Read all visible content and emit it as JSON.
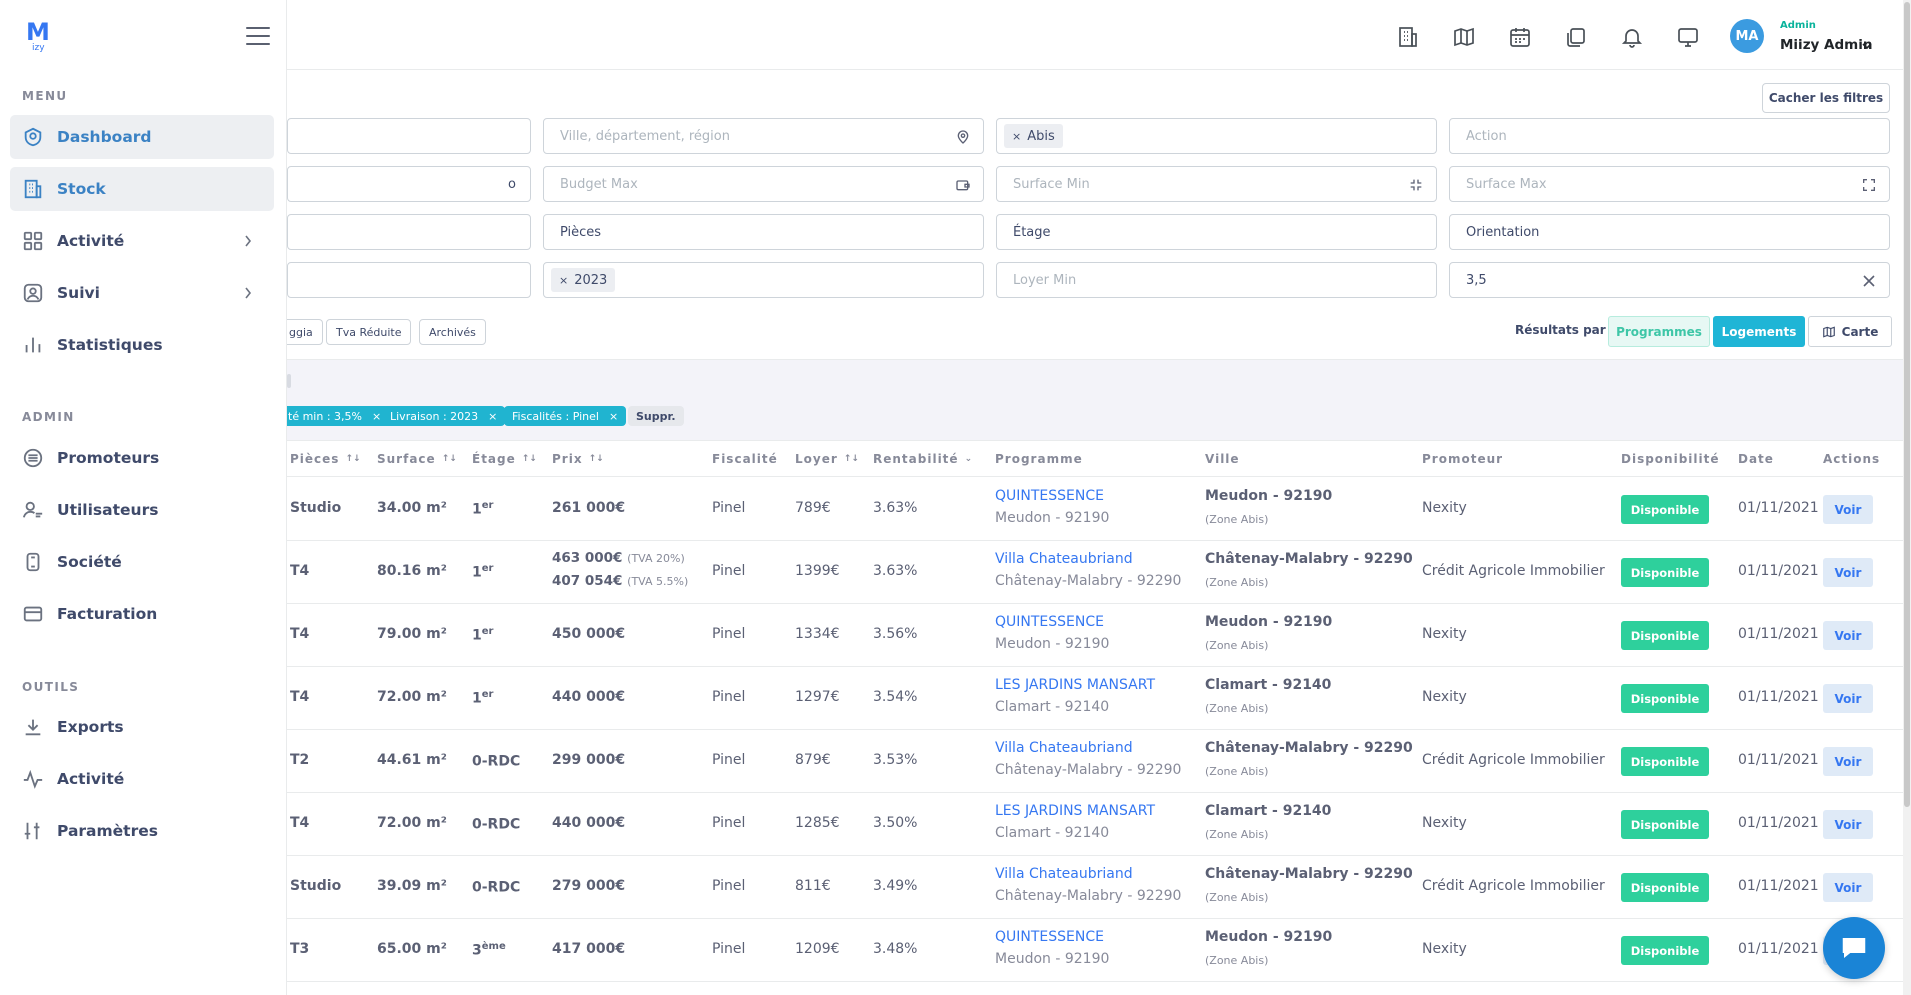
{
  "app": {
    "logo_main": "M",
    "logo_sub": "izy"
  },
  "sidebar": {
    "sections": [
      {
        "title": "MENU",
        "items": [
          {
            "label": "Dashboard",
            "icon": "shield-icon",
            "active": true
          },
          {
            "label": "Stock",
            "icon": "building-icon",
            "active": true
          },
          {
            "label": "Activité",
            "icon": "grid-icon",
            "chevron": true
          },
          {
            "label": "Suivi",
            "icon": "user-circle-icon",
            "chevron": true
          },
          {
            "label": "Statistiques",
            "icon": "bar-chart-icon"
          }
        ]
      },
      {
        "title": "ADMIN",
        "items": [
          {
            "label": "Promoteurs",
            "icon": "list-circle-icon"
          },
          {
            "label": "Utilisateurs",
            "icon": "users-icon"
          },
          {
            "label": "Société",
            "icon": "document-icon"
          },
          {
            "label": "Facturation",
            "icon": "wallet-icon"
          }
        ]
      },
      {
        "title": "OUTILS",
        "items": [
          {
            "label": "Exports",
            "icon": "download-icon"
          },
          {
            "label": "Activité",
            "icon": "activity-icon"
          },
          {
            "label": "Paramètres",
            "icon": "sliders-icon"
          }
        ]
      }
    ]
  },
  "topbar": {
    "icons": [
      "building-icon",
      "map-icon",
      "calendar-icon",
      "files-icon",
      "bell-icon",
      "monitor-icon"
    ],
    "user": {
      "initials": "MA",
      "role": "Admin",
      "name": "Miizy Admin"
    }
  },
  "filters": {
    "hide_label": "Cacher les filtres",
    "location_placeholder": "Ville, département, région",
    "zone_tag": "Abis",
    "action_placeholder": "Action",
    "budget_min_fragment": "o",
    "budget_max_placeholder": "Budget Max",
    "surface_min_placeholder": "Surface Min",
    "surface_max_placeholder": "Surface Max",
    "pieces_placeholder": "Pièces",
    "etage_placeholder": "Étage",
    "orientation_placeholder": "Orientation",
    "livraison_tag": "2023",
    "loyer_min_placeholder": "Loyer Min",
    "rentabilite_value": "3,5",
    "chips": [
      "ggia",
      "Tva Réduite",
      "Archivés"
    ],
    "results_label": "Résultats par",
    "view_programmes": "Programmes",
    "view_logements": "Logements",
    "view_carte": "Carte"
  },
  "active_filters": [
    {
      "label": "té min : 3,5%"
    },
    {
      "label": "Livraison : 2023"
    },
    {
      "label": "Fiscalités : Pinel"
    }
  ],
  "suppr_label": "Suppr.",
  "table": {
    "headers": {
      "pieces": "Pièces",
      "surface": "Surface",
      "etage": "Étage",
      "prix": "Prix",
      "fiscalite": "Fiscalité",
      "loyer": "Loyer",
      "rentabilite": "Rentabilité",
      "programme": "Programme",
      "ville": "Ville",
      "promoteur": "Promoteur",
      "disponibilite": "Disponibilité",
      "date": "Date",
      "actions": "Actions"
    },
    "sort_glyph": "↑↓",
    "desc_glyph": "⌄",
    "rows": [
      {
        "pieces": "Studio",
        "surface": "34.00 m²",
        "etage_base": "1",
        "etage_sup": "er",
        "prix": "261 000€",
        "prix2": "",
        "tva1": "",
        "tva2": "",
        "fiscalite": "Pinel",
        "loyer": "789€",
        "rentabilite": "3.63%",
        "programme": "QUINTESSENCE",
        "programme_city": "Meudon - 92190",
        "ville": "Meudon - 92190",
        "zone": "(Zone Abis)",
        "promoteur": "Nexity",
        "dispo": "Disponible",
        "date": "01/11/2021",
        "action": "Voir"
      },
      {
        "pieces": "T4",
        "surface": "80.16 m²",
        "etage_base": "1",
        "etage_sup": "er",
        "prix": "463 000€",
        "prix2": "407 054€",
        "tva1": "(TVA 20%)",
        "tva2": "(TVA 5.5%)",
        "fiscalite": "Pinel",
        "loyer": "1399€",
        "rentabilite": "3.63%",
        "programme": "Villa Chateaubriand",
        "programme_city": "Châtenay-Malabry - 92290",
        "ville": "Châtenay-Malabry - 92290",
        "zone": "(Zone Abis)",
        "promoteur": "Crédit Agricole Immobilier",
        "dispo": "Disponible",
        "date": "01/11/2021",
        "action": "Voir"
      },
      {
        "pieces": "T4",
        "surface": "79.00 m²",
        "etage_base": "1",
        "etage_sup": "er",
        "prix": "450 000€",
        "prix2": "",
        "tva1": "",
        "tva2": "",
        "fiscalite": "Pinel",
        "loyer": "1334€",
        "rentabilite": "3.56%",
        "programme": "QUINTESSENCE",
        "programme_city": "Meudon - 92190",
        "ville": "Meudon - 92190",
        "zone": "(Zone Abis)",
        "promoteur": "Nexity",
        "dispo": "Disponible",
        "date": "01/11/2021",
        "action": "Voir"
      },
      {
        "pieces": "T4",
        "surface": "72.00 m²",
        "etage_base": "1",
        "etage_sup": "er",
        "prix": "440 000€",
        "prix2": "",
        "tva1": "",
        "tva2": "",
        "fiscalite": "Pinel",
        "loyer": "1297€",
        "rentabilite": "3.54%",
        "programme": "LES JARDINS MANSART",
        "programme_city": "Clamart - 92140",
        "ville": "Clamart - 92140",
        "zone": "(Zone Abis)",
        "promoteur": "Nexity",
        "dispo": "Disponible",
        "date": "01/11/2021",
        "action": "Voir"
      },
      {
        "pieces": "T2",
        "surface": "44.61 m²",
        "etage_base": "0-RDC",
        "etage_sup": "",
        "prix": "299 000€",
        "prix2": "",
        "tva1": "",
        "tva2": "",
        "fiscalite": "Pinel",
        "loyer": "879€",
        "rentabilite": "3.53%",
        "programme": "Villa Chateaubriand",
        "programme_city": "Châtenay-Malabry - 92290",
        "ville": "Châtenay-Malabry - 92290",
        "zone": "(Zone Abis)",
        "promoteur": "Crédit Agricole Immobilier",
        "dispo": "Disponible",
        "date": "01/11/2021",
        "action": "Voir"
      },
      {
        "pieces": "T4",
        "surface": "72.00 m²",
        "etage_base": "0-RDC",
        "etage_sup": "",
        "prix": "440 000€",
        "prix2": "",
        "tva1": "",
        "tva2": "",
        "fiscalite": "Pinel",
        "loyer": "1285€",
        "rentabilite": "3.50%",
        "programme": "LES JARDINS MANSART",
        "programme_city": "Clamart - 92140",
        "ville": "Clamart - 92140",
        "zone": "(Zone Abis)",
        "promoteur": "Nexity",
        "dispo": "Disponible",
        "date": "01/11/2021",
        "action": "Voir"
      },
      {
        "pieces": "Studio",
        "surface": "39.09 m²",
        "etage_base": "0-RDC",
        "etage_sup": "",
        "prix": "279 000€",
        "prix2": "",
        "tva1": "",
        "tva2": "",
        "fiscalite": "Pinel",
        "loyer": "811€",
        "rentabilite": "3.49%",
        "programme": "Villa Chateaubriand",
        "programme_city": "Châtenay-Malabry - 92290",
        "ville": "Châtenay-Malabry - 92290",
        "zone": "(Zone Abis)",
        "promoteur": "Crédit Agricole Immobilier",
        "dispo": "Disponible",
        "date": "01/11/2021",
        "action": "Voir"
      },
      {
        "pieces": "T3",
        "surface": "65.00 m²",
        "etage_base": "3",
        "etage_sup": "ème",
        "prix": "417 000€",
        "prix2": "",
        "tva1": "",
        "tva2": "",
        "fiscalite": "Pinel",
        "loyer": "1209€",
        "rentabilite": "3.48%",
        "programme": "QUINTESSENCE",
        "programme_city": "Meudon - 92190",
        "ville": "Meudon - 92190",
        "zone": "(Zone Abis)",
        "promoteur": "Nexity",
        "dispo": "Disponible",
        "date": "01/11/2021",
        "action": "Voir"
      }
    ]
  },
  "colors": {
    "accent": "#3577f1",
    "teal": "#1fb5d6",
    "success": "#2ed09c",
    "sidebar_active_bg": "#edeff2"
  }
}
